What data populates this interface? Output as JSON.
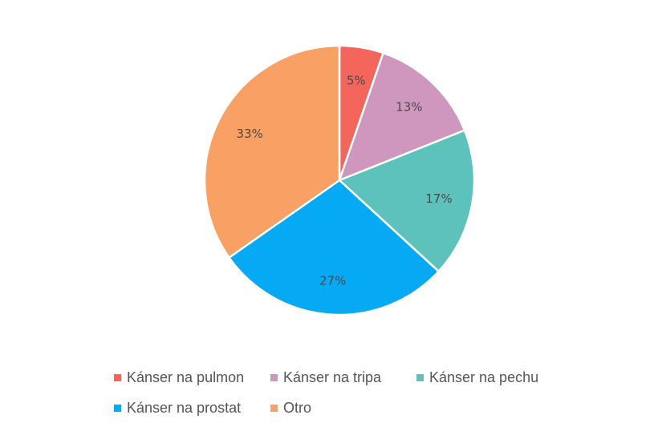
{
  "chart_data": {
    "type": "pie",
    "title": "",
    "start_angle_deg": 0,
    "direction": "clockwise",
    "slice_border_color": "#ffffff",
    "slices": [
      {
        "label": "Kánser na pulmon",
        "value": 5,
        "value_label": "5%",
        "color": "#F4665C"
      },
      {
        "label": "Kánser na tripa",
        "value": 13,
        "value_label": "13%",
        "color": "#CF97BD"
      },
      {
        "label": "Kánser na pechu",
        "value": 17,
        "value_label": "17%",
        "color": "#5EC2BC"
      },
      {
        "label": "Kánser na prostat",
        "value": 27,
        "value_label": "27%",
        "color": "#05A9F4"
      },
      {
        "label": "Otro",
        "value": 33,
        "value_label": "33%",
        "color": "#F9A164"
      }
    ],
    "legend": {
      "placement": "bottom",
      "entries": [
        "Kánser na pulmon",
        "Kánser na tripa",
        "Kánser na pechu",
        "Kánser na prostat",
        "Otro"
      ]
    }
  }
}
